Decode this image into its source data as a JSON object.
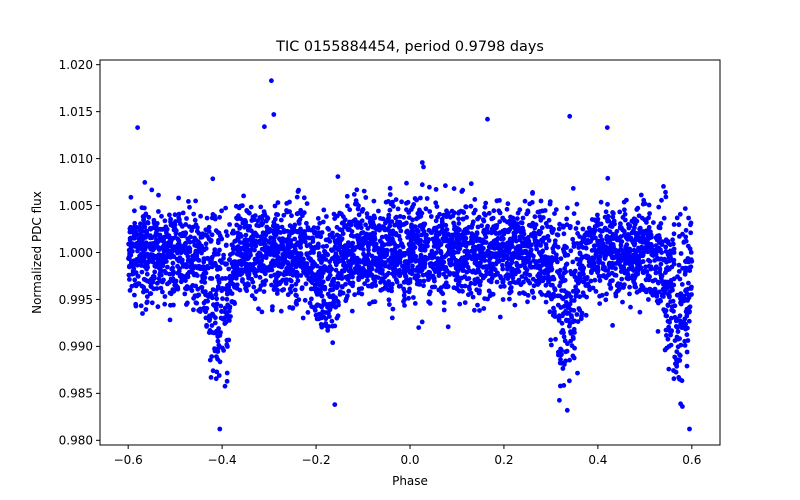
{
  "chart_data": {
    "type": "scatter",
    "title": "TIC 0155884454, period 0.9798 days",
    "xlabel": "Phase",
    "ylabel": "Normalized PDC flux",
    "xlim": [
      -0.66,
      0.66
    ],
    "ylim": [
      0.9795,
      1.0205
    ],
    "xticks": [
      -0.6,
      -0.4,
      -0.2,
      0.0,
      0.2,
      0.4,
      0.6
    ],
    "xtick_labels": [
      "−0.6",
      "−0.4",
      "−0.2",
      "0.0",
      "0.2",
      "0.4",
      "0.6"
    ],
    "yticks": [
      0.98,
      0.985,
      0.99,
      0.995,
      1.0,
      1.005,
      1.01,
      1.015,
      1.02
    ],
    "ytick_labels": [
      "0.980",
      "0.985",
      "0.990",
      "0.995",
      "1.000",
      "1.005",
      "1.010",
      "1.015",
      "1.020"
    ],
    "grid": false,
    "marker_color": "#0000ff",
    "phase_range": [
      -0.6,
      0.6
    ],
    "baseline_flux": 1.0,
    "scatter_sigma": 0.0025,
    "dips": [
      {
        "center": -0.41,
        "depth": 0.0115
      },
      {
        "center": -0.18,
        "depth": 0.0065
      },
      {
        "center": 0.33,
        "depth": 0.0125
      },
      {
        "center": 0.57,
        "depth": 0.012
      }
    ],
    "highlighted_points": [
      {
        "x": -0.295,
        "y": 1.0183
      },
      {
        "x": -0.29,
        "y": 1.0147
      },
      {
        "x": -0.58,
        "y": 1.0133
      },
      {
        "x": 0.34,
        "y": 1.0145
      },
      {
        "x": 0.165,
        "y": 1.0142
      },
      {
        "x": -0.31,
        "y": 1.0134
      },
      {
        "x": 0.42,
        "y": 1.0133
      },
      {
        "x": -0.405,
        "y": 0.9812
      },
      {
        "x": 0.595,
        "y": 0.9812
      },
      {
        "x": -0.16,
        "y": 0.9838
      },
      {
        "x": 0.335,
        "y": 0.9832
      },
      {
        "x": 0.58,
        "y": 0.9836
      }
    ]
  }
}
